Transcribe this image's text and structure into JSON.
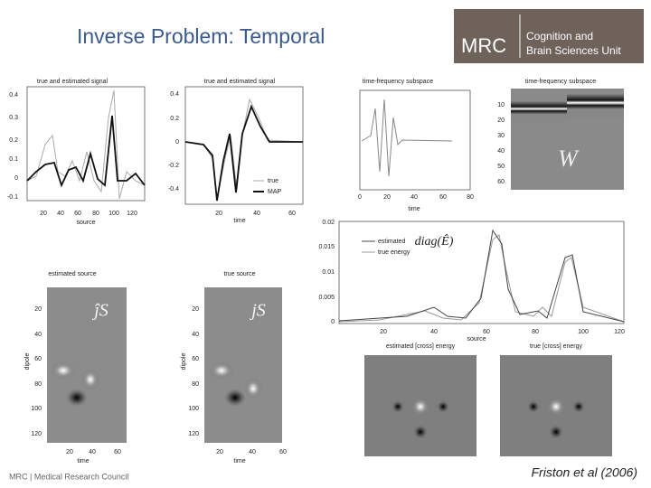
{
  "header": {
    "title": "Inverse Problem: Temporal",
    "logo": {
      "mark": "MRC",
      "line1": "Cognition and",
      "line2": "Brain Sciences Unit"
    }
  },
  "panels": [
    {
      "title": "true and estimated signal",
      "xlabel": "source",
      "xticks": [
        "20",
        "40",
        "60",
        "80",
        "100",
        "120"
      ],
      "yticks": [
        "0.4",
        "0.3",
        "0.2",
        "0.1",
        "0",
        "-0.1"
      ]
    },
    {
      "title": "true and estimated signal",
      "xlabel": "time",
      "xticks": [
        "20",
        "40",
        "60"
      ],
      "yticks": [
        "0.4",
        "0.2",
        "0",
        "-0.2",
        "-0.4"
      ],
      "legend": [
        "true",
        "MAP"
      ]
    },
    {
      "title": "time-frequency subspace",
      "xlabel": "time",
      "xticks": [
        "0",
        "20",
        "40",
        "60",
        "80"
      ]
    },
    {
      "title": "time-frequency subspace",
      "yticks": [
        "10",
        "20",
        "30",
        "40",
        "50",
        "60"
      ],
      "overlay": "W"
    },
    {
      "xlabel": "source",
      "xticks": [
        "20",
        "40",
        "60",
        "80",
        "100",
        "120"
      ],
      "yticks": [
        "0.02",
        "0.015",
        "0.01",
        "0.005",
        "0"
      ],
      "legend": [
        "estimated",
        "true energy"
      ],
      "overlay": "diag(Ê)"
    },
    {
      "title": "estimated source",
      "xlabel": "time",
      "ylabel": "dipole",
      "xticks": [
        "20",
        "40",
        "60"
      ],
      "yticks": [
        "20",
        "40",
        "60",
        "80",
        "100",
        "120"
      ],
      "overlay": "ĵS"
    },
    {
      "title": "true source",
      "xlabel": "time",
      "ylabel": "dipole",
      "xticks": [
        "20",
        "40",
        "60"
      ],
      "yticks": [
        "20",
        "40",
        "60",
        "80",
        "100",
        "120"
      ],
      "overlay": "jS"
    },
    {
      "title": "estimated [cross] energy"
    },
    {
      "title": "true [cross] energy"
    }
  ],
  "footer": {
    "left": "MRC | Medical Research Council",
    "citation": "Friston et al (2006)"
  }
}
